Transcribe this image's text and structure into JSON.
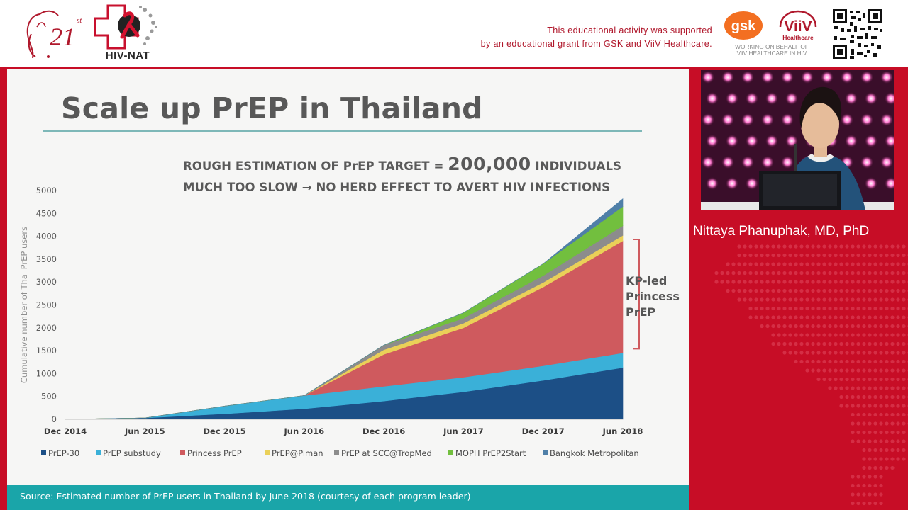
{
  "banner": {
    "logo_21": {
      "number": "21",
      "superscript": "st"
    },
    "logo_hivnat": {
      "text": "HIV-NAT"
    },
    "sponsor_line1": "This educational activity was supported",
    "sponsor_line2": "by an educational grant from GSK and ViiV Healthcare.",
    "gsk_logo_text": "gsk",
    "viiv_logo_text": "ViiV",
    "viiv_logo_sub": "Healthcare",
    "viiv_working_line1": "WORKING ON BEHALF OF",
    "viiv_working_line2": "ViiV HEALTHCARE IN HIV"
  },
  "slide": {
    "title": "Scale up PrEP in Thailand",
    "target_line1_prefix": "ROUGH ESTIMATION OF PrEP TARGET = ",
    "target_line1_number": "200,000",
    "target_line1_suffix": " INDIVIDUALS",
    "target_line2": "MUCH TOO SLOW → NO HERD EFFECT TO AVERT HIV INFECTIONS",
    "source": "Source: Estimated number of PrEP users in Thailand by June 2018 (courtesy of each program leader)"
  },
  "speaker": {
    "name": "Nittaya Phanuphak, MD, PhD"
  },
  "colors": {
    "banner_red": "#b0182c",
    "stage_red": "#c70d26",
    "teal": "#1aa5a9",
    "title_grey": "#585858"
  },
  "chart_data": {
    "type": "area",
    "stacked": true,
    "ylabel": "Cumulative number of Thai PrEP users",
    "xlabel": "",
    "ylim": [
      0,
      5000
    ],
    "yticks": [
      0,
      500,
      1000,
      1500,
      2000,
      2500,
      3000,
      3500,
      4000,
      4500,
      5000
    ],
    "categories": [
      "Dec 2014",
      "Jun 2015",
      "Dec 2015",
      "Jun 2016",
      "Dec 2016",
      "Jun 2017",
      "Dec 2017",
      "Jun 2018"
    ],
    "grid": false,
    "legend_position": "bottom",
    "series": [
      {
        "name": "PrEP-30",
        "color": "#1c4f86",
        "values": [
          0,
          30,
          120,
          230,
          400,
          600,
          850,
          1130
        ]
      },
      {
        "name": "PrEP substudy",
        "color": "#3ab0d8",
        "values": [
          0,
          0,
          170,
          290,
          320,
          320,
          320,
          320
        ]
      },
      {
        "name": "Princess PrEP",
        "color": "#cf5a5e",
        "values": [
          0,
          0,
          0,
          0,
          700,
          1080,
          1720,
          2450
        ]
      },
      {
        "name": "PrEP@Piman",
        "color": "#ead058",
        "values": [
          0,
          0,
          0,
          0,
          100,
          100,
          100,
          120
        ]
      },
      {
        "name": "PrEP at SCC@TropMed",
        "color": "#8c8c8c",
        "values": [
          0,
          0,
          0,
          0,
          100,
          110,
          150,
          210
        ]
      },
      {
        "name": "MOPH PrEP2Start",
        "color": "#72bf3e",
        "values": [
          0,
          0,
          0,
          0,
          0,
          120,
          260,
          420
        ]
      },
      {
        "name": "Bangkok Metropolitan",
        "color": "#4f7fa8",
        "values": [
          0,
          0,
          0,
          0,
          0,
          0,
          0,
          170
        ]
      }
    ],
    "annotation": {
      "lines": [
        "KP-led",
        "Princess",
        "PrEP"
      ],
      "color": "#cf5a5e"
    }
  }
}
